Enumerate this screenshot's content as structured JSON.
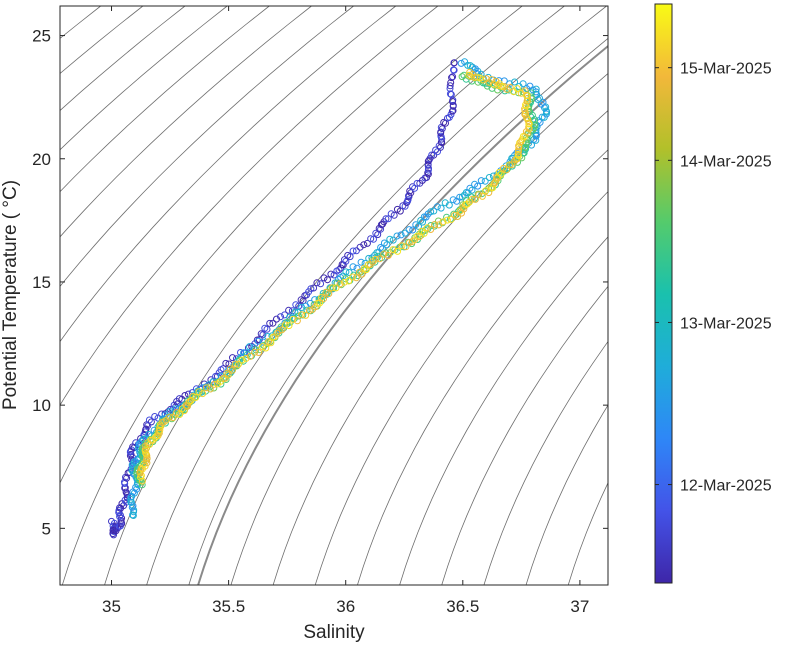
{
  "chart_data": {
    "type": "scatter",
    "xlabel": "Salinity",
    "ylabel": "Potential Temperature ( °C)",
    "xlim": [
      34.78,
      37.12
    ],
    "ylim": [
      2.7,
      26.2
    ],
    "xticks": [
      35,
      35.5,
      36,
      36.5,
      37
    ],
    "xtick_labels": [
      "35",
      "35.5",
      "36",
      "36.5",
      "37"
    ],
    "yticks": [
      5,
      10,
      15,
      20,
      25
    ],
    "ytick_labels": [
      "5",
      "10",
      "15",
      "20",
      "25"
    ],
    "grid": false,
    "background": "density isopleth contours (sigma-theta), one highlighted",
    "colorbar": {
      "ticks": [
        {
          "label": "12-Mar-2025",
          "t": 0.17
        },
        {
          "label": "13-Mar-2025",
          "t": 0.45
        },
        {
          "label": "14-Mar-2025",
          "t": 0.73
        },
        {
          "label": "15-Mar-2025",
          "t": 0.89
        }
      ],
      "colormap": [
        "#3e26a8",
        "#4353e8",
        "#2e87f7",
        "#1fadd9",
        "#1ac1ad",
        "#55cb6b",
        "#b2c02a",
        "#f2b83a",
        "#f9fb15"
      ]
    },
    "series": [
      {
        "color_value": 0.05,
        "points": [
          [
            35.0,
            5.2
          ],
          [
            35.02,
            4.8
          ],
          [
            35.04,
            5.6
          ],
          [
            35.06,
            6.4
          ],
          [
            35.08,
            7.6
          ],
          [
            35.1,
            8.4
          ],
          [
            35.18,
            9.4
          ],
          [
            35.3,
            10.2
          ],
          [
            35.45,
            11.2
          ],
          [
            35.6,
            12.5
          ],
          [
            35.75,
            13.8
          ],
          [
            35.9,
            15.0
          ],
          [
            36.02,
            16.0
          ],
          [
            36.15,
            17.2
          ],
          [
            36.25,
            18.2
          ],
          [
            36.33,
            19.2
          ],
          [
            36.38,
            20.2
          ],
          [
            36.42,
            21.2
          ],
          [
            36.46,
            22.4
          ],
          [
            36.45,
            24.1
          ]
        ]
      },
      {
        "color_value": 0.35,
        "points": [
          [
            35.08,
            5.5
          ],
          [
            35.1,
            6.5
          ],
          [
            35.1,
            7.5
          ],
          [
            35.12,
            8.3
          ],
          [
            35.2,
            9.2
          ],
          [
            35.3,
            10.0
          ],
          [
            35.45,
            11.0
          ],
          [
            35.6,
            12.3
          ],
          [
            35.78,
            13.6
          ],
          [
            35.95,
            14.9
          ],
          [
            36.1,
            16.0
          ],
          [
            36.25,
            17.0
          ],
          [
            36.4,
            18.0
          ],
          [
            36.55,
            18.8
          ],
          [
            36.7,
            19.8
          ],
          [
            36.8,
            20.8
          ],
          [
            36.85,
            21.8
          ],
          [
            36.82,
            22.8
          ],
          [
            36.6,
            23.3
          ],
          [
            36.48,
            24.0
          ]
        ]
      },
      {
        "color_value": 0.6,
        "points": [
          [
            35.12,
            6.8
          ],
          [
            35.12,
            7.6
          ],
          [
            35.15,
            8.4
          ],
          [
            35.22,
            9.2
          ],
          [
            35.33,
            10.1
          ],
          [
            35.48,
            11.1
          ],
          [
            35.64,
            12.4
          ],
          [
            35.8,
            13.6
          ],
          [
            35.96,
            14.8
          ],
          [
            36.12,
            15.8
          ],
          [
            36.3,
            16.8
          ],
          [
            36.45,
            17.7
          ],
          [
            36.58,
            18.6
          ],
          [
            36.7,
            19.6
          ],
          [
            36.78,
            20.6
          ],
          [
            36.8,
            21.6
          ],
          [
            36.78,
            22.6
          ],
          [
            36.6,
            23.0
          ],
          [
            36.5,
            23.4
          ]
        ]
      },
      {
        "color_value": 0.9,
        "points": [
          [
            35.13,
            7.0
          ],
          [
            35.14,
            7.8
          ],
          [
            35.17,
            8.6
          ],
          [
            35.24,
            9.4
          ],
          [
            35.36,
            10.3
          ],
          [
            35.5,
            11.3
          ],
          [
            35.66,
            12.5
          ],
          [
            35.82,
            13.7
          ],
          [
            35.98,
            14.9
          ],
          [
            36.14,
            15.9
          ],
          [
            36.32,
            16.9
          ],
          [
            36.48,
            17.8
          ],
          [
            36.6,
            18.7
          ],
          [
            36.7,
            19.7
          ],
          [
            36.76,
            20.7
          ],
          [
            36.78,
            21.7
          ],
          [
            36.76,
            22.7
          ],
          [
            36.62,
            23.1
          ],
          [
            36.52,
            23.5
          ]
        ]
      }
    ]
  }
}
